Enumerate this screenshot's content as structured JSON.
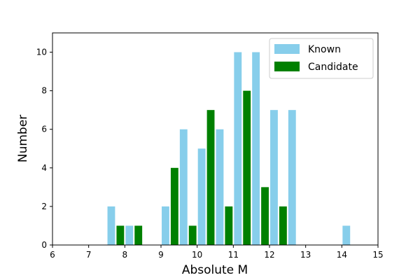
{
  "chart_data": {
    "type": "bar",
    "title": "",
    "xlabel": "Absolute M",
    "ylabel": "Number",
    "xlim": [
      6,
      15
    ],
    "ylim": [
      0,
      11
    ],
    "xticks": [
      "6",
      "7",
      "8",
      "9",
      "10",
      "11",
      "12",
      "13",
      "14",
      "15"
    ],
    "yticks": [
      "0",
      "2",
      "4",
      "6",
      "8",
      "10"
    ],
    "grid": false,
    "legend_position": "top-right",
    "bin_width": 0.5,
    "bin_starts": [
      7.5,
      8.0,
      9.0,
      9.5,
      10.0,
      10.5,
      11.0,
      11.5,
      12.0,
      12.5,
      14.0
    ],
    "series": [
      {
        "name": "Known",
        "color": "#87ceeb",
        "values": [
          2,
          1,
          2,
          6,
          5,
          6,
          10,
          10,
          7,
          7,
          1
        ]
      },
      {
        "name": "Candidate",
        "color": "#008000",
        "values": [
          1,
          1,
          4,
          1,
          7,
          2,
          8,
          3,
          2,
          0,
          0
        ]
      }
    ]
  }
}
